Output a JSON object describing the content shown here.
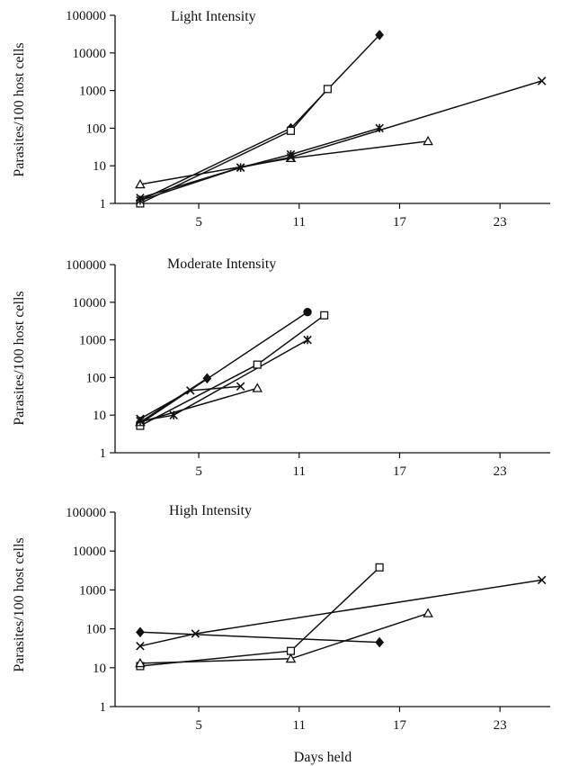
{
  "chart_data": [
    {
      "type": "line",
      "title": "Light Intensity",
      "ylabel": "Parasites/100 host cells",
      "xlabel": "",
      "y_scale": "log",
      "ylim": [
        1,
        100000
      ],
      "xlim": [
        0,
        26
      ],
      "x_ticks": [
        5,
        11,
        17,
        23
      ],
      "y_ticks": [
        "1",
        "10",
        "100",
        "1000",
        "10000",
        "100000"
      ],
      "grid": false,
      "series": [
        {
          "marker": "diamond",
          "x": [
            1.5,
            10.5,
            15.8
          ],
          "y": [
            1.2,
            100,
            30000
          ]
        },
        {
          "marker": "square",
          "x": [
            1.5,
            10.5,
            12.7
          ],
          "y": [
            1.0,
            85,
            1100
          ]
        },
        {
          "marker": "triangle",
          "x": [
            1.5,
            10.5,
            18.7
          ],
          "y": [
            3.2,
            16,
            45
          ]
        },
        {
          "marker": "cross",
          "x": [
            1.5,
            7.5,
            10.5,
            25.5
          ],
          "y": [
            1.4,
            9,
            17,
            1800
          ]
        },
        {
          "marker": "asterisk",
          "x": [
            1.5,
            7.5,
            10.5,
            15.8
          ],
          "y": [
            1.2,
            9,
            20,
            100
          ]
        }
      ]
    },
    {
      "type": "line",
      "title": "Moderate Intensity",
      "ylabel": "Parasites/100 host cells",
      "xlabel": "",
      "y_scale": "log",
      "ylim": [
        1,
        100000
      ],
      "xlim": [
        0,
        26
      ],
      "x_ticks": [
        5,
        11,
        17,
        23
      ],
      "y_ticks": [
        "1",
        "10",
        "100",
        "1000",
        "10000",
        "100000"
      ],
      "grid": false,
      "series": [
        {
          "marker": "circle",
          "x": [
            1.5,
            11.5
          ],
          "y": [
            6,
            5500
          ]
        },
        {
          "marker": "diamond",
          "x": [
            1.5,
            5.5
          ],
          "y": [
            6.5,
            95
          ]
        },
        {
          "marker": "square",
          "x": [
            1.5,
            8.5,
            12.5
          ],
          "y": [
            5.2,
            220,
            4500
          ]
        },
        {
          "marker": "triangle",
          "x": [
            1.5,
            8.5
          ],
          "y": [
            6.5,
            52
          ]
        },
        {
          "marker": "cross",
          "x": [
            1.5,
            4.5,
            7.5
          ],
          "y": [
            8,
            45,
            58
          ]
        },
        {
          "marker": "asterisk",
          "x": [
            1.5,
            3.5,
            11.5
          ],
          "y": [
            7,
            10,
            1000
          ]
        }
      ]
    },
    {
      "type": "line",
      "title": "High Intensity",
      "ylabel": "Parasites/100 host cells",
      "xlabel": "Days held",
      "y_scale": "log",
      "ylim": [
        1,
        100000
      ],
      "xlim": [
        0,
        26
      ],
      "x_ticks": [
        5,
        11,
        17,
        23
      ],
      "y_ticks": [
        "1",
        "10",
        "100",
        "1000",
        "10000",
        "100000"
      ],
      "grid": false,
      "series": [
        {
          "marker": "diamond",
          "x": [
            1.5,
            15.8
          ],
          "y": [
            82,
            45
          ]
        },
        {
          "marker": "square",
          "x": [
            1.5,
            10.5,
            15.8
          ],
          "y": [
            11,
            27,
            3800
          ]
        },
        {
          "marker": "triangle",
          "x": [
            1.5,
            10.5,
            18.7
          ],
          "y": [
            13,
            17,
            250
          ]
        },
        {
          "marker": "cross",
          "x": [
            1.5,
            4.8,
            25.5
          ],
          "y": [
            36,
            75,
            1800
          ]
        }
      ]
    }
  ]
}
